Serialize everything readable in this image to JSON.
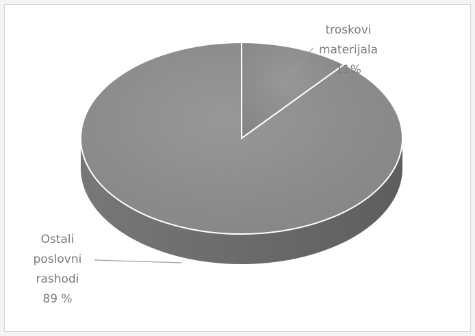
{
  "chart_data": {
    "type": "pie",
    "title": "",
    "categories": [
      "troskovi materijala",
      "Ostali poslovni rashodi"
    ],
    "values": [
      11,
      89
    ],
    "labels": [
      {
        "lines": [
          "troskovi",
          "materijala",
          "11%"
        ]
      },
      {
        "lines": [
          "Ostali",
          "poslovni",
          "rashodi",
          "89 %"
        ]
      }
    ],
    "colors": {
      "top": "#8e8e8e",
      "side": "#6a6a6a",
      "separator": "#ffffff",
      "label": "#7a7a7a",
      "leader": "#9a9a9a"
    },
    "legend": "none"
  }
}
